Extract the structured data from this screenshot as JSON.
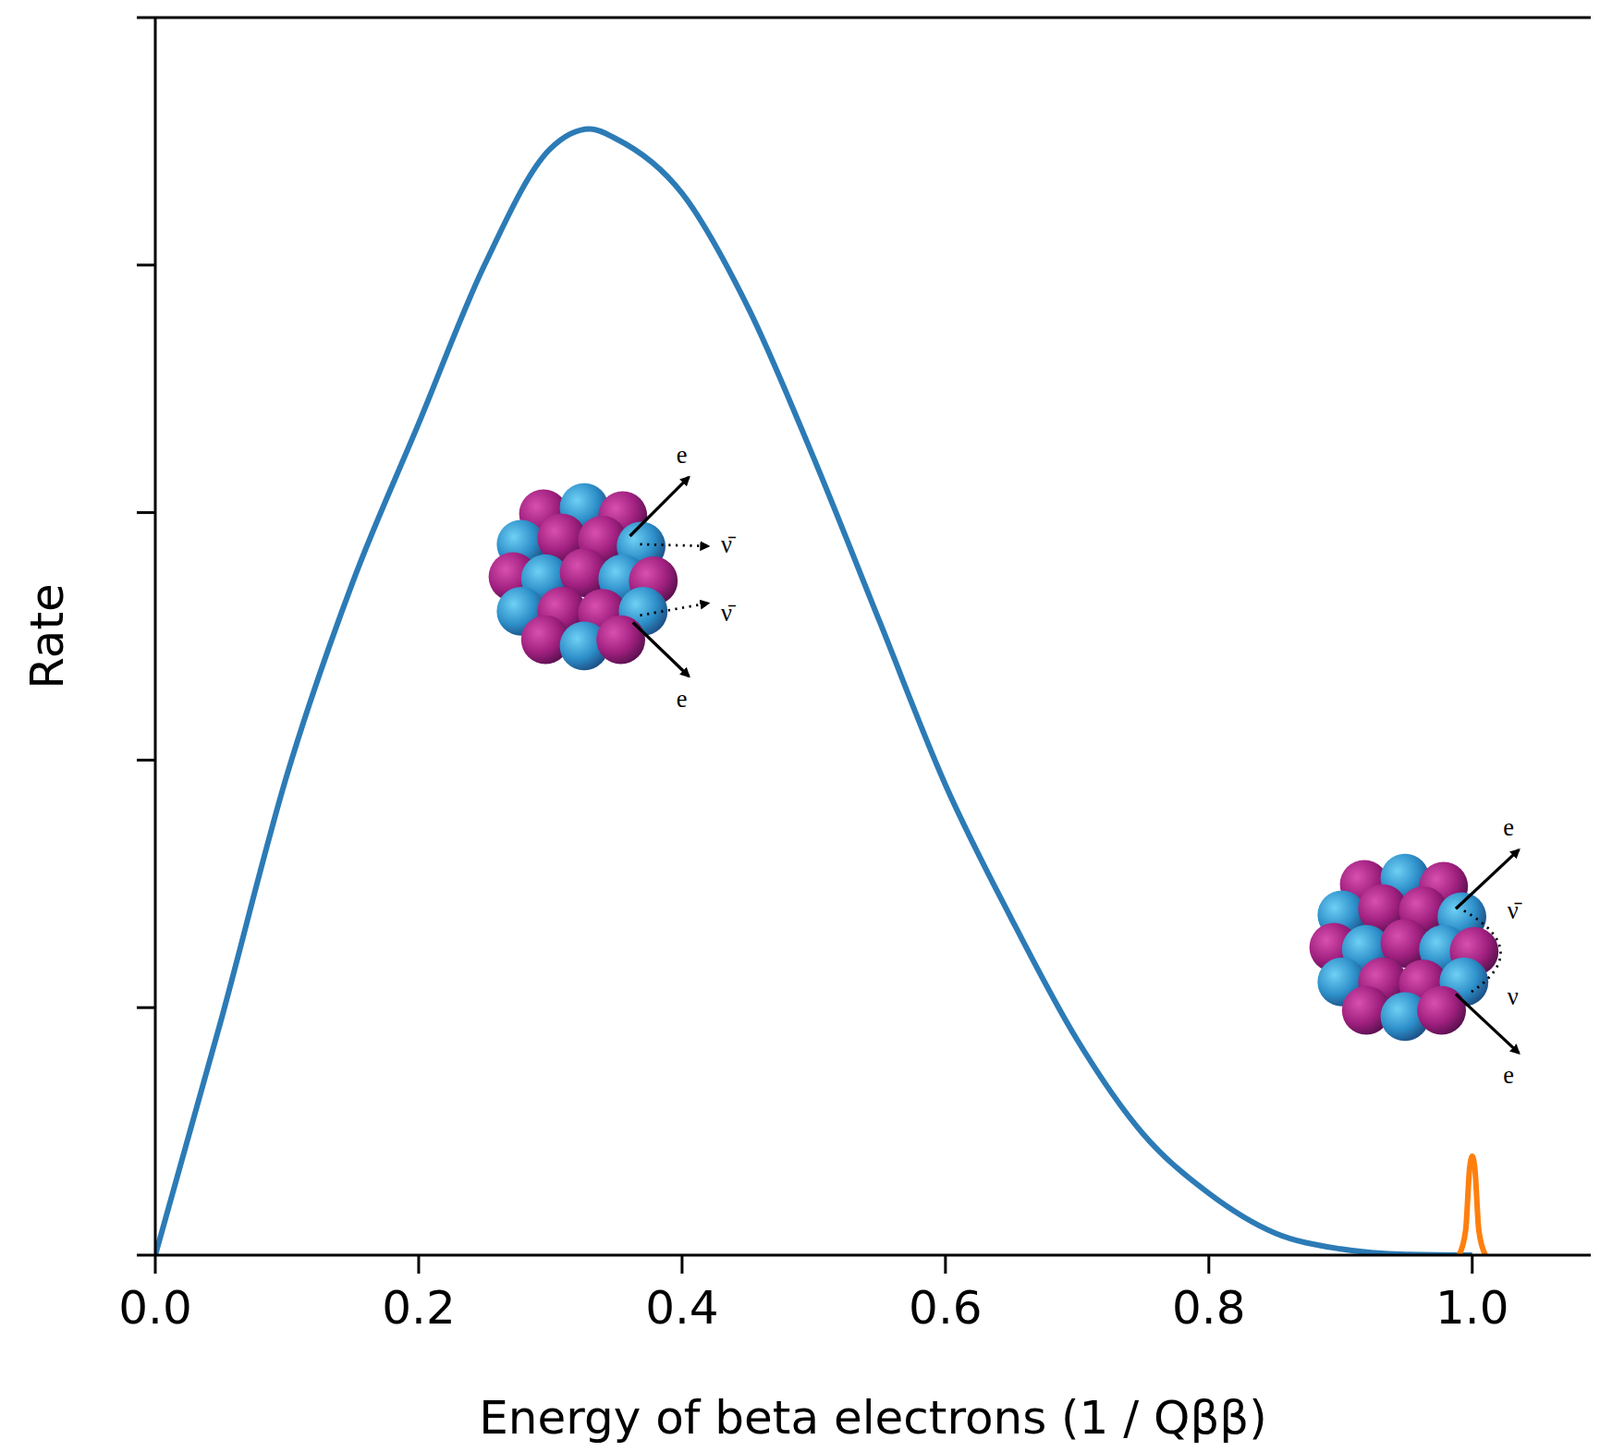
{
  "chart_data": {
    "type": "line",
    "x_label": "Energy of beta electrons (1 / Qββ)",
    "y_label": "Rate",
    "xlim": [
      0,
      1.09
    ],
    "xticks": [
      {
        "value": 0,
        "label": "0.0"
      },
      {
        "value": 0.2,
        "label": "0.2"
      },
      {
        "value": 0.4,
        "label": "0.4"
      },
      {
        "value": 0.6,
        "label": "0.6"
      },
      {
        "value": 0.8,
        "label": "0.8"
      },
      {
        "value": 1,
        "label": "1.0"
      }
    ],
    "ylim": [
      0,
      5
    ],
    "yticks": [
      0,
      1,
      2,
      3,
      4,
      5
    ],
    "tick_labels": "x",
    "grid": false,
    "series": [
      {
        "color": "#2c7bb6",
        "x": [
          0,
          0.05,
          0.1,
          0.15,
          0.2,
          0.25,
          0.3,
          0.33,
          0.35,
          0.4,
          0.45,
          0.5,
          0.55,
          0.6,
          0.65,
          0.7,
          0.75,
          0.8,
          0.85,
          0.9,
          0.95,
          1.0
        ],
        "values": [
          0,
          0.95,
          1.94,
          2.72,
          3.36,
          4.0,
          4.47,
          4.55,
          4.51,
          4.29,
          3.83,
          3.22,
          2.56,
          1.9,
          1.36,
          0.87,
          0.49,
          0.25,
          0.09,
          0.025,
          0.003,
          0
        ]
      },
      {
        "color": "#ff7f0e",
        "x": [
          0.99,
          0.995,
          0.998,
          1.0,
          1.002,
          1.005,
          1.01
        ],
        "values": [
          0,
          0.1,
          0.35,
          0.4,
          0.35,
          0.1,
          0
        ]
      }
    ],
    "annotations": [
      {
        "texts": [
          "e",
          "ν̄",
          "ν̄",
          "e"
        ]
      },
      {
        "texts": [
          "e",
          "ν̄",
          "ν",
          "e"
        ]
      }
    ]
  }
}
